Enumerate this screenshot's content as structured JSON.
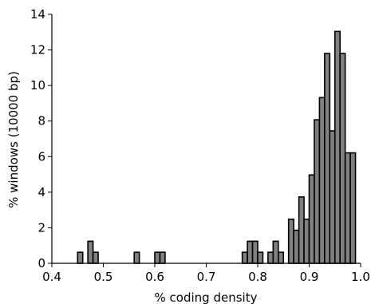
{
  "chart_data": {
    "type": "bar",
    "title": "",
    "xlabel": "% coding density",
    "ylabel": "% windows (10000 bp)",
    "xlim": [
      0.4,
      1.0
    ],
    "ylim": [
      0,
      14
    ],
    "x_ticks": [
      0.4,
      0.5,
      0.6,
      0.7,
      0.8,
      0.9,
      1.0
    ],
    "x_tick_labels": [
      "0.4",
      "0.5",
      "0.6",
      "0.7",
      "0.8",
      "0.9",
      "1.0"
    ],
    "y_ticks": [
      0,
      2,
      4,
      6,
      8,
      10,
      12,
      14
    ],
    "y_tick_labels": [
      "0",
      "2",
      "4",
      "6",
      "8",
      "10",
      "12",
      "14"
    ],
    "grid": false,
    "bin_width": 0.01,
    "bins": [
      {
        "x_start": 0.45,
        "value": 0.62
      },
      {
        "x_start": 0.47,
        "value": 1.24
      },
      {
        "x_start": 0.48,
        "value": 0.62
      },
      {
        "x_start": 0.56,
        "value": 0.62
      },
      {
        "x_start": 0.6,
        "value": 0.62
      },
      {
        "x_start": 0.61,
        "value": 0.62
      },
      {
        "x_start": 0.77,
        "value": 0.62
      },
      {
        "x_start": 0.78,
        "value": 1.24
      },
      {
        "x_start": 0.79,
        "value": 1.24
      },
      {
        "x_start": 0.8,
        "value": 0.62
      },
      {
        "x_start": 0.82,
        "value": 0.62
      },
      {
        "x_start": 0.83,
        "value": 1.24
      },
      {
        "x_start": 0.84,
        "value": 0.62
      },
      {
        "x_start": 0.86,
        "value": 2.48
      },
      {
        "x_start": 0.87,
        "value": 1.86
      },
      {
        "x_start": 0.88,
        "value": 3.73
      },
      {
        "x_start": 0.89,
        "value": 2.48
      },
      {
        "x_start": 0.9,
        "value": 4.97
      },
      {
        "x_start": 0.91,
        "value": 8.07
      },
      {
        "x_start": 0.92,
        "value": 9.32
      },
      {
        "x_start": 0.93,
        "value": 11.8
      },
      {
        "x_start": 0.94,
        "value": 7.45
      },
      {
        "x_start": 0.95,
        "value": 13.04
      },
      {
        "x_start": 0.96,
        "value": 11.8
      },
      {
        "x_start": 0.97,
        "value": 6.21
      },
      {
        "x_start": 0.98,
        "value": 6.21
      }
    ],
    "bar_color": "#808080",
    "edge_color": "#000000"
  }
}
